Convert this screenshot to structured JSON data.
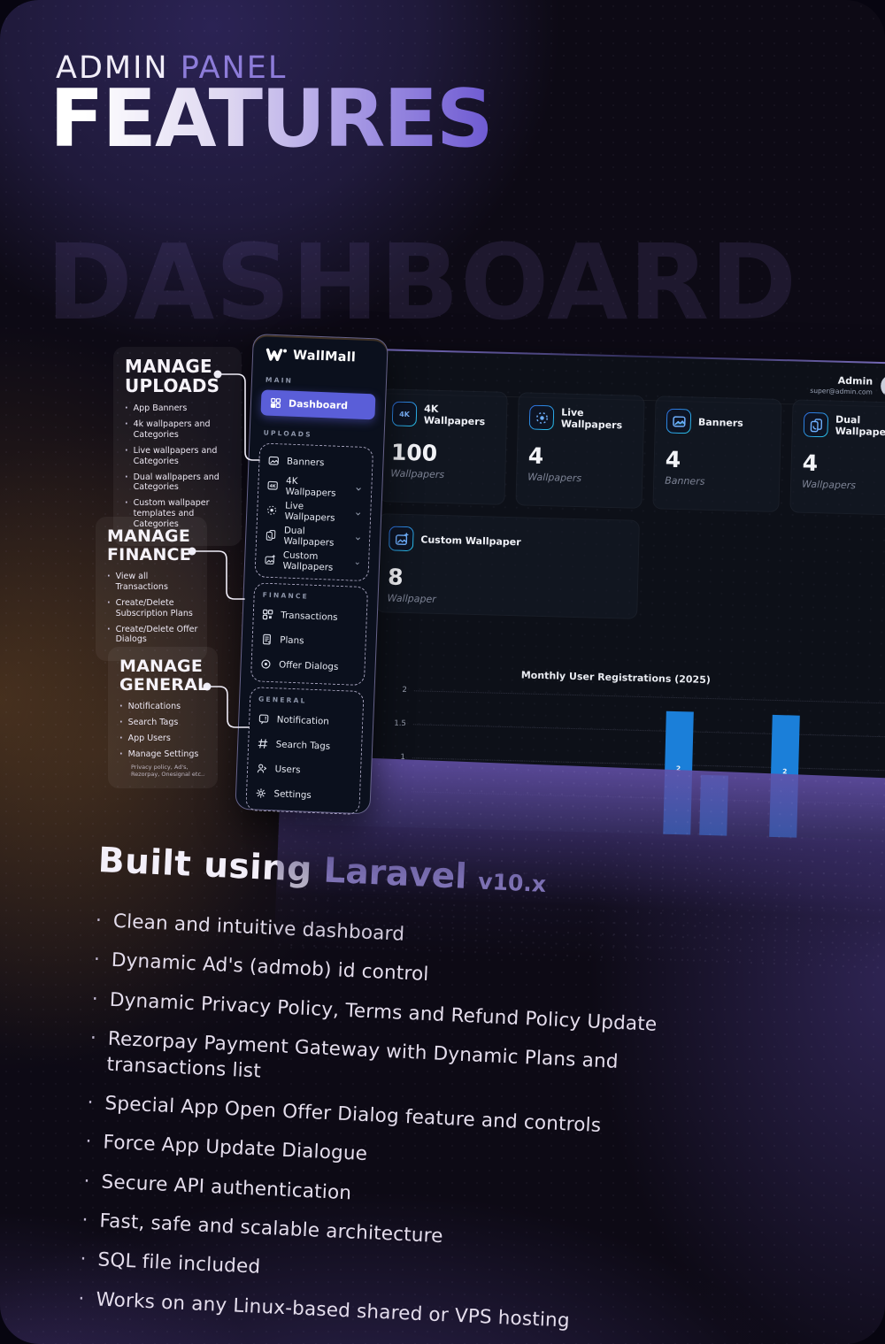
{
  "page": {
    "kicker_primary": "ADMIN",
    "kicker_secondary": "PANEL",
    "title": "FEATURES",
    "watermark": "DASHBOARD"
  },
  "sidebar": {
    "brand": "WallMall",
    "sections": {
      "main": {
        "label": "MAIN",
        "items": [
          {
            "label": "Dashboard",
            "active": true
          }
        ]
      },
      "uploads": {
        "label": "UPLOADS",
        "items": [
          {
            "label": "Banners",
            "chevron": false
          },
          {
            "label": "4K Wallpapers",
            "chevron": true
          },
          {
            "label": "Live Wallpapers",
            "chevron": true
          },
          {
            "label": "Dual Wallpapers",
            "chevron": true
          },
          {
            "label": "Custom Wallpapers",
            "chevron": true
          }
        ]
      },
      "finance": {
        "label": "FINANCE",
        "items": [
          {
            "label": "Transactions"
          },
          {
            "label": "Plans"
          },
          {
            "label": "Offer Dialogs"
          }
        ]
      },
      "general": {
        "label": "GENERAL",
        "items": [
          {
            "label": "Notification"
          },
          {
            "label": "Search Tags"
          },
          {
            "label": "Users"
          },
          {
            "label": "Settings"
          }
        ]
      }
    }
  },
  "dashboard": {
    "user": {
      "name": "Admin",
      "email": "super@admin.com"
    },
    "cards": [
      {
        "title": "4K Wallpapers",
        "value": "100",
        "unit": "Wallpapers"
      },
      {
        "title": "Live Wallpapers",
        "value": "4",
        "unit": "Wallpapers"
      },
      {
        "title": "Banners",
        "value": "4",
        "unit": "Banners"
      },
      {
        "title": "Dual Wallpapers",
        "value": "4",
        "unit": "Wallpapers"
      },
      {
        "title": "Custom Wallpaper",
        "value": "8",
        "unit": "Wallpaper"
      }
    ]
  },
  "chart_data": {
    "type": "bar",
    "title": "Monthly User Registrations (2025)",
    "xlabel": "",
    "ylabel": "",
    "ylim": [
      0,
      2.2
    ],
    "ytick_labels": [
      "2",
      "1.5",
      "1"
    ],
    "grid": "horizontal-dotted",
    "legend": "none",
    "bar_color": "#1b7fd9",
    "bars": [
      {
        "value": 2,
        "label": "2",
        "x_pct": 55,
        "height_pct": 90
      },
      {
        "value": 1,
        "label": "",
        "x_pct": 62.5,
        "height_pct": 44
      },
      {
        "value": 2,
        "label": "2",
        "x_pct": 77,
        "height_pct": 89
      }
    ]
  },
  "callouts": {
    "uploads": {
      "title": "MANAGE UPLOADS",
      "items": [
        "App Banners",
        "4k wallpapers and Categories",
        "Live wallpapers and Categories",
        "Dual wallpapers and Categories",
        "Custom wallpaper templates and Categories"
      ]
    },
    "finance": {
      "title": "MANAGE FINANCE",
      "items": [
        "View all Transactions",
        "Create/Delete Subscription Plans",
        "Create/Delete Offer Dialogs"
      ]
    },
    "general": {
      "title": "MANAGE GENERAL",
      "items": [
        "Notifications",
        "Search Tags",
        "App Users",
        "Manage Settings"
      ],
      "footnote": "Privacy policy, Ad's, Rezorpay, Onesignal etc.."
    }
  },
  "built": {
    "prefix": "Built using",
    "tech": "Laravel",
    "version": "v10.x",
    "features": [
      "Clean and intuitive dashboard",
      "Dynamic Ad's (admob) id control",
      "Dynamic Privacy Policy, Terms and Refund Policy Update",
      "Rezorpay Payment Gateway with Dynamic Plans and transactions list",
      "Special App Open Offer Dialog feature and controls",
      "Force App Update Dialogue",
      "Secure API authentication",
      "Fast, safe and scalable architecture",
      "SQL file included",
      "Works on any Linux-based shared or VPS hosting"
    ]
  },
  "colors": {
    "accent_purple": "#8f7fe0",
    "active_item": "#5a5ed8",
    "icon_blue": "#3b82f6",
    "bar_blue": "#1b7fd9"
  }
}
